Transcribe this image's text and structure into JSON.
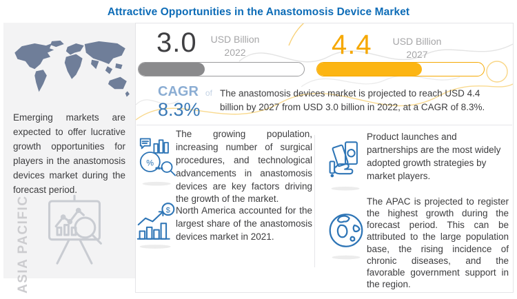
{
  "page": {
    "title": "Attractive Opportunities in the Anastomosis Device Market"
  },
  "chart_data": {
    "type": "bar",
    "title": "Attractive Opportunities in the Anastomosis Device Market",
    "categories": [
      "2022",
      "2027"
    ],
    "values": [
      3.0,
      4.4
    ],
    "unit": "USD Billion",
    "cagr": "8.3%",
    "bar_fill_percents": [
      40,
      63
    ],
    "bar_colors": [
      "#8a8a8c",
      "#fcb513"
    ],
    "legend_position": "none",
    "grid": false
  },
  "sidebar": {
    "description": "Emerging markets are expected to offer lucrative growth opportunities for players in the anastomosis devices market during the forecast period.",
    "region_watermark": "ASIA PACIFIC"
  },
  "stats": {
    "current": {
      "value": "3.0",
      "unit": "USD Billion",
      "year": "2022",
      "fill_percent": 40
    },
    "projected": {
      "value": "4.4",
      "unit": "USD Billion",
      "year": "2027",
      "fill_percent": 63
    }
  },
  "cagr": {
    "label": "CAGR",
    "connector": "of",
    "value": "8.3%"
  },
  "summary": "The anastomosis devices market is projected to reach USD 4.4 billion by 2027 from USD 3.0 billion in 2022, at a CAGR of 8.3%.",
  "insights": [
    {
      "icon": "market-analysis-icon",
      "text": "The growing population, increasing number of surgical procedures, and technological advancements in anastomosis devices are key factors driving the growth of the market."
    },
    {
      "icon": "growth-chart-dollar-icon",
      "text": "North America accounted for the largest share of the anastomosis devices market in 2021."
    },
    {
      "icon": "hand-money-icon",
      "text": "Product launches and partnerships are the most widely adopted growth strategies by market players."
    },
    {
      "icon": "globe-icon",
      "text": "The APAC is projected to register the highest growth during the forecast period. This can be attributed to the large population base, the rising incidence of chronic diseases, and the favorable government support in the region."
    }
  ],
  "colors": {
    "title_blue": "#0d6cb7",
    "amber": "#f6a800",
    "bar_gray": "#8a8a8c",
    "cagr_light_blue": "#8badd3",
    "cagr_value_blue": "#3a79b6",
    "icon_blue": "#2e75b6",
    "map_slate": "#6f7e99",
    "sidebar_bg": "#f3f3f4"
  }
}
